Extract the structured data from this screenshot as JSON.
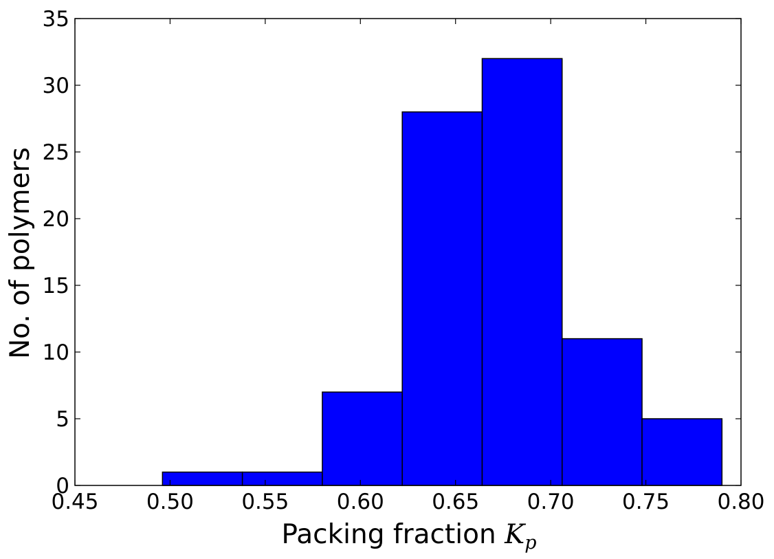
{
  "chart_data": {
    "type": "bar",
    "title": "",
    "xlabel": "Packing fraction",
    "xlabel_symbol": "K",
    "xlabel_subscript": "p",
    "ylabel": "No. of polymers",
    "xlim": [
      0.45,
      0.8
    ],
    "ylim": [
      0,
      35
    ],
    "xticks": [
      0.45,
      0.5,
      0.55,
      0.6,
      0.65,
      0.7,
      0.75,
      0.8
    ],
    "xtick_labels": [
      "0.45",
      "0.50",
      "0.55",
      "0.60",
      "0.65",
      "0.70",
      "0.75",
      "0.80"
    ],
    "yticks": [
      0,
      5,
      10,
      15,
      20,
      25,
      30,
      35
    ],
    "ytick_labels": [
      "0",
      "5",
      "10",
      "15",
      "20",
      "25",
      "30",
      "35"
    ],
    "bins": [
      {
        "start": 0.496,
        "end": 0.538,
        "count": 1
      },
      {
        "start": 0.538,
        "end": 0.58,
        "count": 1
      },
      {
        "start": 0.58,
        "end": 0.622,
        "count": 7
      },
      {
        "start": 0.622,
        "end": 0.664,
        "count": 28
      },
      {
        "start": 0.664,
        "end": 0.706,
        "count": 32
      },
      {
        "start": 0.706,
        "end": 0.748,
        "count": 11
      },
      {
        "start": 0.748,
        "end": 0.79,
        "count": 5
      }
    ],
    "bar_color": "#0000ff",
    "edge_color": "#000000",
    "grid": false,
    "legend": "none"
  }
}
